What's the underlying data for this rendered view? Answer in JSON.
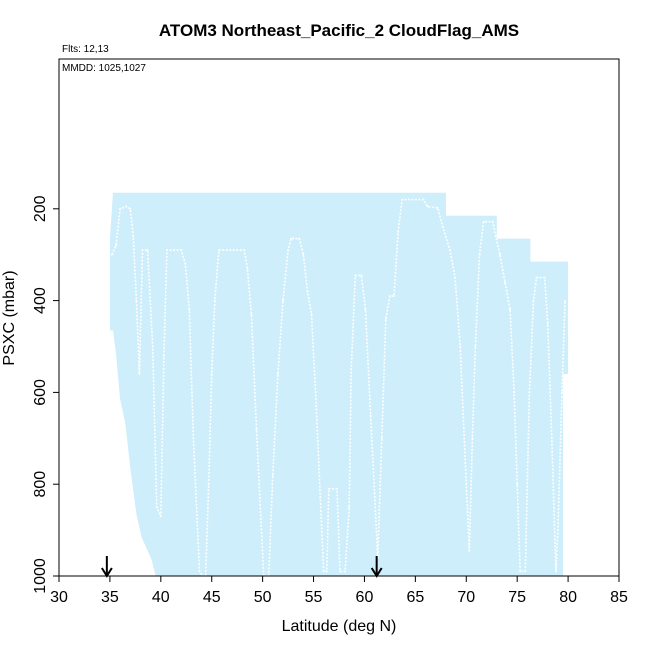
{
  "chart_data": {
    "type": "area",
    "title": "ATOM3 Northeast_Pacific_2 CloudFlag_AMS",
    "annotations": {
      "flights": "Flts: 12,13",
      "dates": "MMDD: 1025,1027"
    },
    "xlabel": "Latitude (deg N)",
    "ylabel": "PSXC (mbar)",
    "xlim": [
      30,
      85
    ],
    "ylim": [
      1000,
      0
    ],
    "xticks": [
      "30",
      "35",
      "40",
      "45",
      "50",
      "55",
      "60",
      "65",
      "70",
      "75",
      "80",
      "85"
    ],
    "yticks": [
      "200",
      "400",
      "600",
      "800",
      "1000"
    ],
    "arrows_at_latitude": [
      34.7,
      61.2
    ],
    "colors": {
      "fill": "#cdeefa",
      "trace": "#ffffff",
      "axis": "#000000"
    },
    "sampled_region": [
      [
        35.0,
        265,
        465
      ],
      [
        35.3,
        165,
        465
      ],
      [
        35.6,
        165,
        515
      ],
      [
        36.0,
        165,
        615
      ],
      [
        36.5,
        165,
        665
      ],
      [
        37.0,
        165,
        765
      ],
      [
        37.6,
        165,
        865
      ],
      [
        38.1,
        165,
        915
      ],
      [
        39.1,
        165,
        965
      ],
      [
        39.5,
        165,
        1000
      ],
      [
        68.0,
        165,
        1000
      ],
      [
        68.0,
        215,
        1000
      ],
      [
        73.0,
        215,
        1000
      ],
      [
        73.0,
        265,
        1000
      ],
      [
        76.3,
        265,
        1000
      ],
      [
        76.3,
        315,
        1000
      ],
      [
        79.5,
        315,
        1000
      ],
      [
        79.5,
        315,
        560
      ],
      [
        80.0,
        315,
        560
      ]
    ],
    "series": [
      {
        "values": [
          [
            35.2,
            300
          ],
          [
            35.6,
            280
          ],
          [
            36.0,
            200
          ],
          [
            36.6,
            195
          ],
          [
            37.0,
            200
          ],
          [
            37.3,
            260
          ],
          [
            37.6,
            400
          ],
          [
            37.9,
            560
          ],
          [
            38.2,
            290
          ],
          [
            38.7,
            290
          ],
          [
            39.2,
            500
          ],
          [
            39.6,
            850
          ],
          [
            40.0,
            870
          ],
          [
            40.3,
            520
          ],
          [
            40.6,
            290
          ],
          [
            42.0,
            290
          ],
          [
            42.4,
            320
          ],
          [
            42.8,
            420
          ],
          [
            43.2,
            700
          ],
          [
            43.8,
            990
          ],
          [
            44.1,
            1000
          ],
          [
            44.4,
            1000
          ],
          [
            44.7,
            800
          ],
          [
            45.0,
            560
          ],
          [
            45.3,
            400
          ],
          [
            45.7,
            290
          ],
          [
            48.2,
            290
          ],
          [
            48.5,
            330
          ],
          [
            48.9,
            430
          ],
          [
            49.4,
            680
          ],
          [
            50.1,
            1000
          ],
          [
            50.6,
            1000
          ],
          [
            51.0,
            780
          ],
          [
            51.5,
            560
          ],
          [
            52.0,
            400
          ],
          [
            52.5,
            290
          ],
          [
            52.8,
            265
          ],
          [
            53.6,
            265
          ],
          [
            54.0,
            300
          ],
          [
            54.4,
            380
          ],
          [
            54.8,
            430
          ],
          [
            55.2,
            600
          ],
          [
            55.7,
            850
          ],
          [
            56.0,
            990
          ],
          [
            56.3,
            990
          ],
          [
            56.5,
            810
          ],
          [
            57.3,
            810
          ],
          [
            57.6,
            990
          ],
          [
            58.1,
            990
          ],
          [
            58.5,
            850
          ],
          [
            58.7,
            550
          ],
          [
            59.1,
            345
          ],
          [
            59.7,
            345
          ],
          [
            60.1,
            420
          ],
          [
            60.6,
            650
          ],
          [
            61.0,
            820
          ],
          [
            61.3,
            960
          ],
          [
            61.7,
            700
          ],
          [
            62.1,
            440
          ],
          [
            62.5,
            390
          ],
          [
            62.9,
            390
          ],
          [
            63.3,
            250
          ],
          [
            63.7,
            180
          ],
          [
            65.8,
            180
          ],
          [
            66.2,
            195
          ],
          [
            67.2,
            198
          ],
          [
            67.7,
            240
          ],
          [
            68.4,
            290
          ],
          [
            68.9,
            350
          ],
          [
            69.4,
            500
          ],
          [
            69.8,
            700
          ],
          [
            70.3,
            945
          ],
          [
            70.6,
            700
          ],
          [
            70.9,
            500
          ],
          [
            71.3,
            300
          ],
          [
            71.7,
            228
          ],
          [
            72.6,
            228
          ],
          [
            72.9,
            260
          ],
          [
            73.3,
            300
          ],
          [
            73.8,
            360
          ],
          [
            74.3,
            420
          ],
          [
            74.7,
            600
          ],
          [
            75.0,
            800
          ],
          [
            75.3,
            990
          ],
          [
            75.8,
            990
          ],
          [
            76.2,
            600
          ],
          [
            76.6,
            400
          ],
          [
            76.9,
            350
          ],
          [
            77.7,
            350
          ],
          [
            78.0,
            450
          ],
          [
            78.4,
            700
          ],
          [
            78.8,
            990
          ],
          [
            79.0,
            900
          ],
          [
            79.4,
            600
          ],
          [
            79.7,
            400
          ]
        ]
      }
    ]
  }
}
